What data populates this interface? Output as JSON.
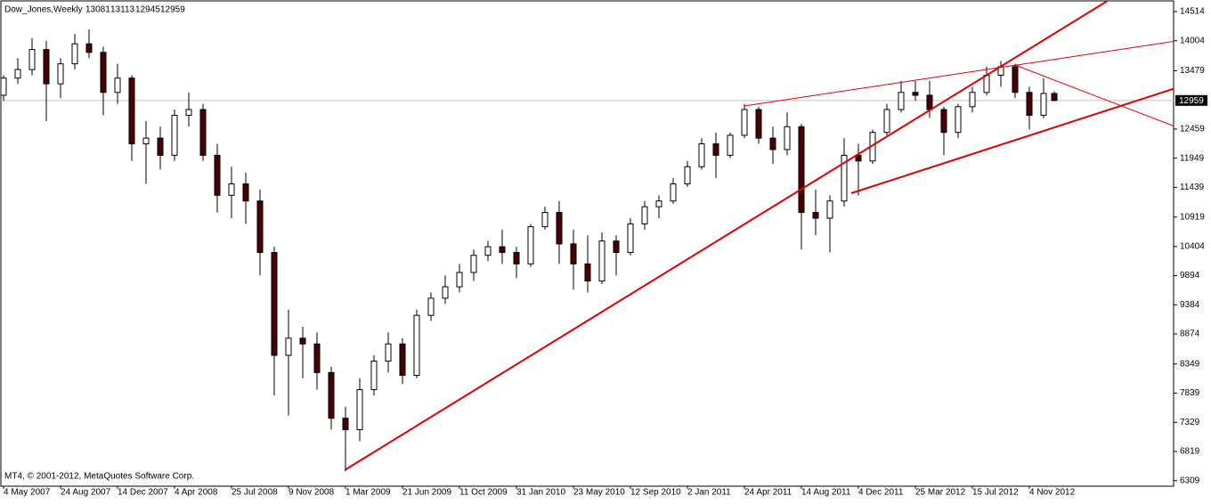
{
  "chart_data": {
    "type": "candlestick",
    "symbol": "Dow_Jones,Weekly",
    "copyright": "MT4, © 2001-2012, MetaQuotes Software Corp.",
    "x": [
      0,
      4,
      8,
      12,
      16,
      20,
      24,
      28,
      32,
      36,
      40,
      44,
      48,
      52,
      56,
      60,
      64,
      68,
      72,
      76,
      80,
      84,
      88,
      92,
      96,
      100,
      104,
      108,
      112,
      116,
      120,
      124,
      128,
      132,
      136,
      140,
      144,
      148,
      152,
      156,
      160,
      164,
      168,
      172,
      176,
      180,
      184,
      188,
      192,
      196,
      200,
      204,
      208,
      212,
      216,
      220,
      224,
      228,
      232,
      236,
      240,
      244,
      248,
      252,
      256,
      260,
      264,
      268,
      272,
      276,
      280,
      284,
      288,
      292,
      295
    ],
    "open": [
      13050,
      13350,
      13500,
      13850,
      13250,
      13600,
      13950,
      13800,
      13100,
      13350,
      12200,
      12300,
      12000,
      12700,
      12800,
      12000,
      11300,
      11500,
      11200,
      10300,
      8500,
      8800,
      8700,
      8200,
      7400,
      7200,
      7900,
      8400,
      8700,
      8150,
      9200,
      9500,
      9700,
      9950,
      10250,
      10400,
      10300,
      10100,
      10750,
      11000,
      10450,
      10100,
      9800,
      10500,
      10300,
      10800,
      11100,
      11200,
      11500,
      11800,
      12200,
      12000,
      12350,
      12800,
      12300,
      12100,
      12500,
      11000,
      10900,
      11200,
      12000,
      11900,
      12400,
      12800,
      13100,
      13050,
      12800,
      12400,
      12850,
      13100,
      13400,
      13550,
      13100,
      12700,
      13081
    ],
    "high": [
      13400,
      13700,
      14050,
      14000,
      13700,
      14120,
      14200,
      13900,
      13600,
      13400,
      12600,
      12500,
      12800,
      13100,
      12900,
      12200,
      11800,
      11700,
      11400,
      10400,
      9300,
      9000,
      8900,
      8300,
      7600,
      8100,
      8500,
      8900,
      8800,
      9300,
      9600,
      9900,
      10100,
      10350,
      10500,
      10700,
      10400,
      10800,
      11100,
      11200,
      10700,
      10600,
      10650,
      10600,
      10900,
      11200,
      11300,
      11600,
      11900,
      12300,
      12400,
      12400,
      12900,
      12850,
      12500,
      12750,
      12550,
      11400,
      11300,
      12300,
      12200,
      12450,
      12900,
      13300,
      13300,
      13300,
      12850,
      12900,
      13200,
      13550,
      13650,
      13600,
      13200,
      13350,
      13113
    ],
    "low": [
      12950,
      13250,
      13400,
      12600,
      13000,
      13500,
      13700,
      12700,
      12900,
      11900,
      11500,
      11750,
      11900,
      12500,
      11900,
      11000,
      10900,
      10800,
      9900,
      7800,
      7450,
      8100,
      7900,
      7200,
      6470,
      7000,
      7800,
      8200,
      8000,
      8100,
      9100,
      9400,
      9600,
      9800,
      10150,
      10100,
      9850,
      10050,
      10700,
      10100,
      9650,
      9600,
      9750,
      9900,
      10250,
      10700,
      10900,
      11150,
      11450,
      11750,
      11600,
      11950,
      12300,
      12200,
      11850,
      12000,
      10350,
      10600,
      10300,
      11100,
      11300,
      11850,
      12350,
      12750,
      12950,
      12650,
      12000,
      12300,
      12750,
      13050,
      13200,
      13000,
      12450,
      12650,
      12945
    ],
    "close": [
      13350,
      13500,
      13850,
      13250,
      13600,
      13950,
      13800,
      13100,
      13350,
      12200,
      12300,
      12000,
      12700,
      12800,
      12000,
      11300,
      11500,
      11200,
      10300,
      8500,
      8800,
      8700,
      8200,
      7400,
      7200,
      7900,
      8400,
      8700,
      8150,
      9200,
      9500,
      9700,
      9950,
      10250,
      10400,
      10300,
      10100,
      10750,
      11000,
      10450,
      10100,
      9800,
      10500,
      10300,
      10800,
      11100,
      11200,
      11500,
      11800,
      12200,
      12000,
      12350,
      12800,
      12300,
      12100,
      12500,
      11000,
      10900,
      11200,
      12000,
      11900,
      12400,
      12800,
      13100,
      13050,
      12800,
      12400,
      12850,
      13100,
      13400,
      13550,
      13100,
      12700,
      13081,
      12959
    ],
    "up_color": "#ffffff",
    "down_color": "#4a0000",
    "wick_color": "#000000",
    "xlim": [
      -0.75,
      328.5
    ],
    "ylim": [
      6227,
      14654
    ],
    "yticks": [
      6309,
      6819,
      7329,
      7839,
      8349,
      8874,
      9384,
      9894,
      10404,
      10919,
      11439,
      11949,
      12459,
      13479,
      14004,
      14514
    ],
    "xticks": [
      {
        "value": 0,
        "label": "4 May 2007"
      },
      {
        "value": 16,
        "label": "24 Aug 2007"
      },
      {
        "value": 32,
        "label": "14 Dec 2007"
      },
      {
        "value": 48,
        "label": "4 Apr 2008"
      },
      {
        "value": 64,
        "label": "25 Jul 2008"
      },
      {
        "value": 80,
        "label": "9 Nov 2008"
      },
      {
        "value": 96,
        "label": "1 Mar 2009"
      },
      {
        "value": 112,
        "label": "21 Jun 2009"
      },
      {
        "value": 128,
        "label": "11 Oct 2009"
      },
      {
        "value": 144,
        "label": "31 Jan 2010"
      },
      {
        "value": 160,
        "label": "23 May 2010"
      },
      {
        "value": 176,
        "label": "12 Sep 2010"
      },
      {
        "value": 192,
        "label": "2 Jan 2011"
      },
      {
        "value": 208,
        "label": "24 Apr 2011"
      },
      {
        "value": 224,
        "label": "14 Aug 2011"
      },
      {
        "value": 240,
        "label": "4 Dec 2011"
      },
      {
        "value": 256,
        "label": "25 Mar 2012"
      },
      {
        "value": 272,
        "label": "15 Jul 2012"
      },
      {
        "value": 288,
        "label": "4 Nov 2012"
      }
    ],
    "trendlines": [
      {
        "x": [
          95.75,
          336
        ],
        "y": [
          6492,
          15700
        ],
        "color": "#e00000",
        "width": 2
      },
      {
        "x": [
          208,
          336
        ],
        "y": [
          12863,
          14062
        ],
        "color": "#e00000",
        "width": 1
      },
      {
        "x": [
          238,
          336
        ],
        "y": [
          11336,
          13315
        ],
        "color": "#e00000",
        "width": 2
      },
      {
        "x": [
          284,
          336
        ],
        "y": [
          13579,
          12333
        ],
        "color": "#e00000",
        "width": 1
      }
    ],
    "price_line_color": "#c0c0c0"
  }
}
